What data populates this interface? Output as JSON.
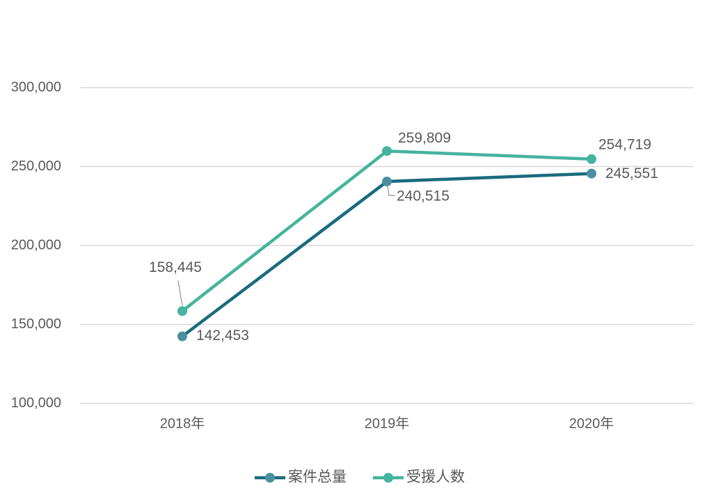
{
  "chart_data": {
    "type": "line",
    "categories": [
      "2018年",
      "2019年",
      "2020年"
    ],
    "series": [
      {
        "name": "案件总量",
        "color": "#1a6b7c",
        "marker_color": "#4a8fa0",
        "values": [
          142453,
          240515,
          245551
        ],
        "value_labels": [
          "142,453",
          "240,515",
          "245,551"
        ]
      },
      {
        "name": "受援人数",
        "color": "#45b39d",
        "marker_color": "#45b39d",
        "values": [
          158445,
          259809,
          254719
        ],
        "value_labels": [
          "158,445",
          "259,809",
          "254,719"
        ]
      }
    ],
    "ylim": [
      100000,
      300000
    ],
    "yticks": [
      {
        "value": 100000,
        "label": "100,000"
      },
      {
        "value": 150000,
        "label": "150,000"
      },
      {
        "value": 200000,
        "label": "200,000"
      },
      {
        "value": 250000,
        "label": "250,000"
      },
      {
        "value": 300000,
        "label": "300,000"
      }
    ],
    "grid": true,
    "legend": "bottom"
  }
}
